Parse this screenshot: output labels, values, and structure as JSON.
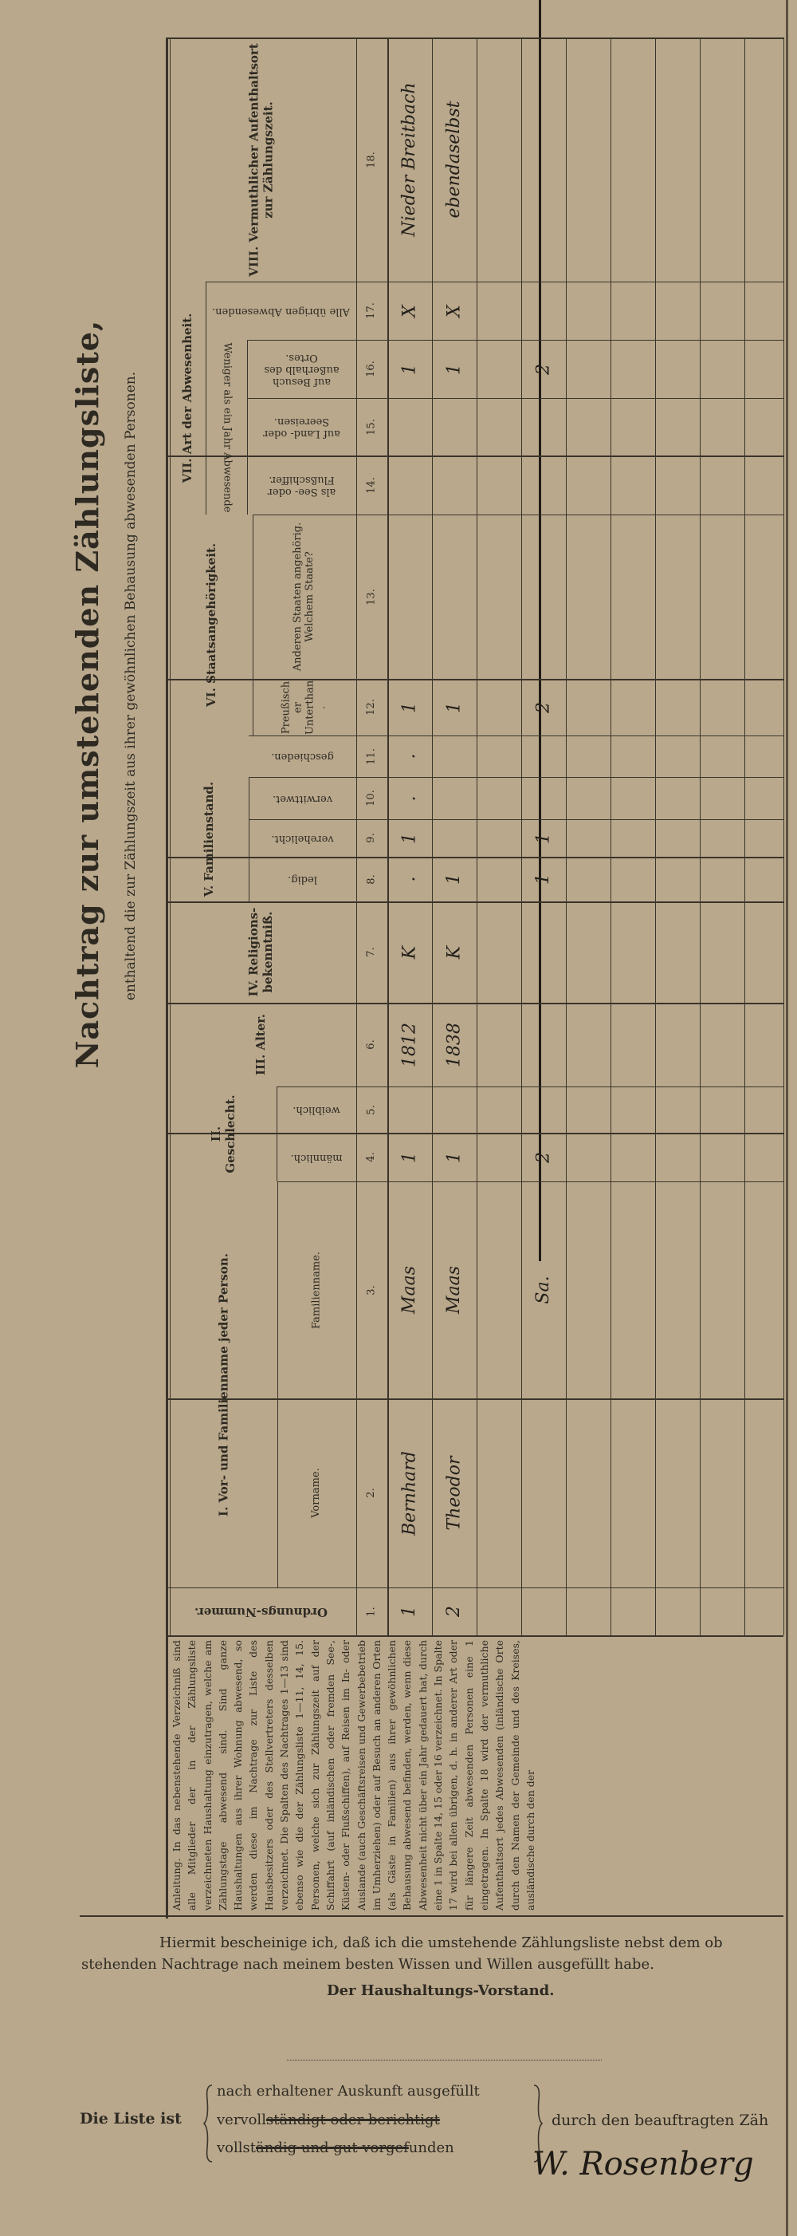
{
  "title": "Nachtrag zur umstehenden Zählungsliste,",
  "subtitle": "enthaltend die zur Zählungszeit aus ihrer gewöhnlichen Behausung abwesenden Personen.",
  "groups": {
    "I": "I. Vor- und Familienname jeder Person.",
    "II": "II. Geschlecht.",
    "V": "V. Familienstand.",
    "VI": "VI. Staatsangehörigkeit.",
    "VII": "VII. Art der Abwesenheit.",
    "VII_sub": "Weniger als ein Jahr Abwesende"
  },
  "columns": [
    {
      "num": "1.",
      "label": "Ordnungs-Nummer."
    },
    {
      "num": "2.",
      "label": "Vorname."
    },
    {
      "num": "3.",
      "label": "Familienname."
    },
    {
      "num": "4.",
      "label": "männlich."
    },
    {
      "num": "5.",
      "label": "weiblich."
    },
    {
      "num": "6.",
      "label": "III. Alter."
    },
    {
      "num": "7.",
      "label": "IV. Religions-bekenntniß."
    },
    {
      "num": "8.",
      "label": "ledig."
    },
    {
      "num": "9.",
      "label": "verehelicht."
    },
    {
      "num": "10.",
      "label": "verwittwet."
    },
    {
      "num": "11.",
      "label": "geschieden."
    },
    {
      "num": "12.",
      "label": "Preußischer Unterthan."
    },
    {
      "num": "13.",
      "label": "Anderen Staaten angehörig. Welchem Staate?"
    },
    {
      "num": "14.",
      "label": "als See- oder Flußschiffer."
    },
    {
      "num": "15.",
      "label": "auf Land- oder Seereisen."
    },
    {
      "num": "16.",
      "label": "auf Besuch außerhalb des Ortes."
    },
    {
      "num": "17.",
      "label": "Alle übrigen Abwesenden."
    },
    {
      "num": "18.",
      "label": "VIII. Vermuthlicher Aufenthaltsort zur Zählungszeit."
    }
  ],
  "rows": [
    {
      "1": "1",
      "2": "Bernhard",
      "3": "Maas",
      "4": "1",
      "6": "1812",
      "7": "K",
      "8": ".",
      "9": "1",
      "10": ".",
      "11": ".",
      "12": "1",
      "16": "1",
      "17": "X",
      "18": "Nieder Breitbach"
    },
    {
      "1": "2",
      "2": "Theodor",
      "3": "Maas",
      "4": "1",
      "6": "1838",
      "7": "K",
      "8": "1",
      "12": "1",
      "16": "1",
      "17": "X",
      "18": "ebendaselbst"
    },
    {},
    {
      "3": "Sa.",
      "4": "2",
      "8": "1",
      "9": "1",
      "12": "2",
      "16": "2"
    },
    {},
    {},
    {},
    {},
    {}
  ],
  "instructions": "Anleitung. In das nebenstehende Verzeichniß sind alle Mitglieder der in der Zählungsliste verzeichneten Haushaltung einzutragen, welche am Zählungstage abwesend sind. Sind ganze Haushaltungen aus ihrer Wohnung abwesend, so werden diese im Nachtrage zur Liste des Hausbesitzers oder des Stellvertreters desselben verzeichnet. Die Spalten des Nachtrages 1—13 sind ebenso wie die der Zählungsliste 1—11, 14, 15. Personen, welche sich zur Zählungszeit auf der Schiffahrt (auf inländischen oder fremden See-, Küsten- oder Flußschiffen), auf Reisen im In- oder Auslande (auch Geschäftsreisen und Gewerbebetrieb im Umherziehen) oder auf Besuch an anderen Orten (als Gäste in Familien) aus ihrer gewöhnlichen Behausung abwesend befinden, werden, wenn diese Abwesenheit nicht über ein Jahr gedauert hat, durch eine 1 in Spalte 14, 15 oder 16 verzeichnet. In Spalte 17 wird bei allen übrigen, d. h. in anderer Art oder für längere Zeit abwesenden Personen eine 1 eingetragen. In Spalte 18 wird der vermuthliche Aufenthaltsort jedes Abwesenden (inländische Orte durch den Namen der Gemeinde und des Kreises, ausländische durch den der",
  "certification": {
    "line1": "Hiermit bescheinige ich, daß ich die umstehende Zählungsliste nebst dem ob",
    "line2": "stehenden Nachtrage nach meinem besten Wissen und Willen ausgefüllt habe.",
    "signer_role": "Der Haushaltungs-Vorstand."
  },
  "list_status": {
    "label": "Die Liste ist",
    "option1": "nach erhaltener Auskunft ausgefüllt",
    "option2_kept": "vervoll",
    "option2_struck": "ständigt oder berichtigt",
    "option3_kept": "vollst",
    "option3_struck": "ändig und gut vorgef",
    "option3_tail": "unden",
    "by": "durch den beauftragten Zäh",
    "signature": "W. Rosenberg"
  }
}
